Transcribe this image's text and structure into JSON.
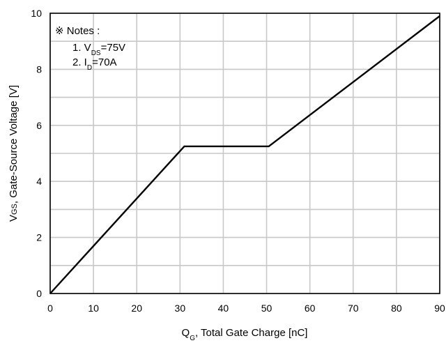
{
  "chart_data": {
    "type": "line",
    "title": "",
    "xlabel": {
      "main": "Q",
      "sub": "G",
      "rest": ", Total Gate Charge [nC]"
    },
    "ylabel": {
      "main": "V",
      "sub": "GS",
      "rest": ", Gate-Source Voltage [V]"
    },
    "xlim": [
      0,
      90
    ],
    "ylim": [
      0,
      10
    ],
    "x_ticks": [
      0,
      10,
      20,
      30,
      40,
      50,
      60,
      70,
      80,
      90
    ],
    "y_ticks": [
      0,
      2,
      4,
      6,
      8,
      10
    ],
    "x_grid": [
      0,
      10,
      20,
      30,
      40,
      50,
      60,
      70,
      80,
      90
    ],
    "y_grid": [
      0,
      1,
      2,
      3,
      4,
      5,
      6,
      7,
      8,
      9,
      10
    ],
    "grid": true,
    "series": [
      {
        "x": [
          0,
          31,
          50.5,
          90
        ],
        "y": [
          0,
          5.25,
          5.25,
          9.9
        ]
      }
    ],
    "notes": {
      "title": "※ Notes :",
      "items": [
        {
          "prefix": "1. V",
          "sub": "DS",
          "suffix": "=75V"
        },
        {
          "prefix": "2. I",
          "sub": "D",
          "suffix": "=70A"
        }
      ]
    }
  },
  "colors": {
    "grid": "#c8c8c8",
    "line": "#000000",
    "frame": "#000000"
  }
}
